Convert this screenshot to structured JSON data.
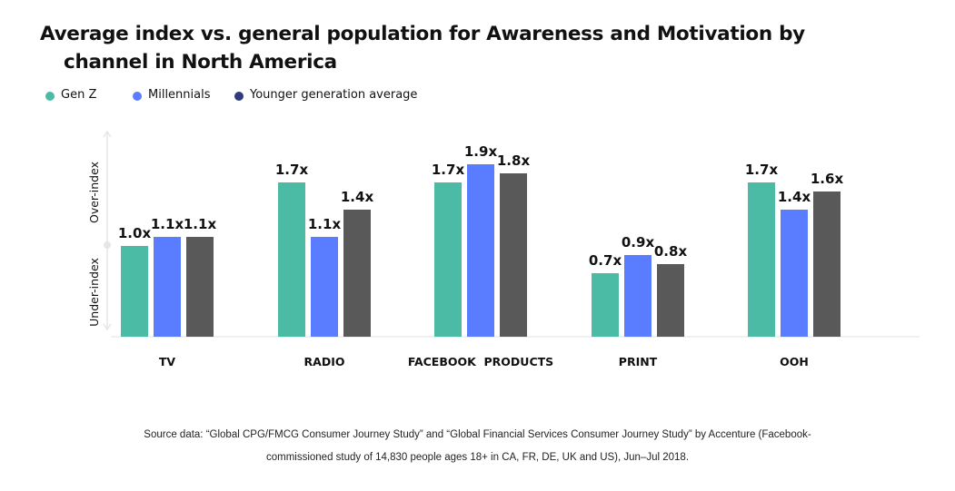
{
  "title": {
    "line1": "Average index vs. general population for Awareness and Motivation by",
    "line2": "channel in North America"
  },
  "legend": [
    {
      "label": "Gen Z",
      "color": "#4cbba5"
    },
    {
      "label": "Millennials",
      "color": "#5a7cff"
    },
    {
      "label": "Younger generation average",
      "color": "#2f3b7c"
    }
  ],
  "axis": {
    "upper_label": "Over-index",
    "lower_label": "Under-index"
  },
  "chart_data": {
    "type": "bar",
    "categories": [
      "TV",
      "RADIO",
      "FACEBOOK  PRODUCTS",
      "PRINT",
      "OOH"
    ],
    "series": [
      {
        "name": "Gen Z",
        "color": "#4cbba5",
        "values": [
          1.0,
          1.7,
          1.7,
          0.7,
          1.7
        ],
        "labels": [
          "1.0x",
          "1.7x",
          "1.7x",
          "0.7x",
          "1.7x"
        ]
      },
      {
        "name": "Millennials",
        "color": "#5a7cff",
        "values": [
          1.1,
          1.1,
          1.9,
          0.9,
          1.4
        ],
        "labels": [
          "1.1x",
          "1.1x",
          "1.9x",
          "0.9x",
          "1.4x"
        ]
      },
      {
        "name": "Younger generation average",
        "color": "#595959",
        "values": [
          1.1,
          1.4,
          1.8,
          0.8,
          1.6
        ],
        "labels": [
          "1.1x",
          "1.4x",
          "1.8x",
          "0.8x",
          "1.6x"
        ]
      }
    ],
    "ylim": [
      0,
      2.0
    ],
    "xlabel": "",
    "ylabel": ""
  },
  "source": {
    "line1": "Source data: “Global CPG/FMCG Consumer Journey Study” and “Global Financial Services Consumer Journey Study” by Accenture (Facebook-",
    "line2": "commissioned study of 14,830 people ages 18+ in CA, FR, DE, UK and US), Jun–Jul 2018."
  }
}
